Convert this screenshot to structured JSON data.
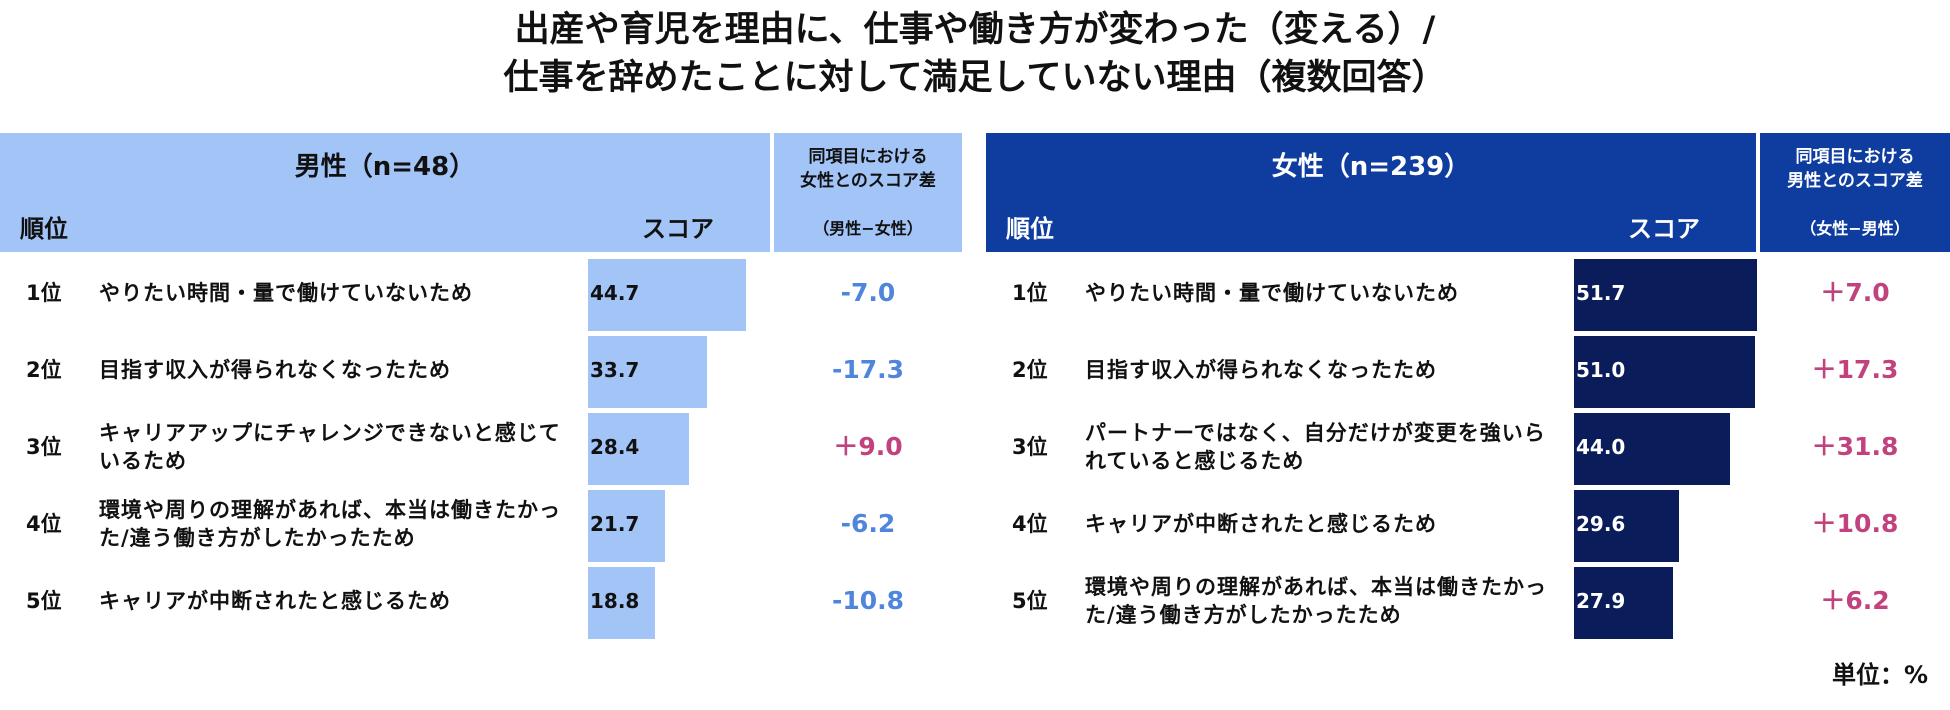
{
  "title": {
    "line1": "出産や育児を理由に、仕事や働き方が変わった（変える）/",
    "line2": "仕事を辞めたことに対して満足していない理由（複数回答）"
  },
  "unit": "単位：%",
  "colors": {
    "male_header": "#a2c4f7",
    "male_bar": "#a2c4f7",
    "female_header": "#0e3d9f",
    "female_bar": "#0b1c5a",
    "negative": "#4f86dc",
    "positive": "#c2427e"
  },
  "chart_data": [
    {
      "type": "bar",
      "title": "男性（n=48）",
      "rank_header": "順位",
      "score_header": "スコア",
      "diff_header_line1": "同項目における",
      "diff_header_line2": "女性とのスコア差",
      "diff_header_sub": "（男性−女性）",
      "ranks": [
        "1位",
        "2位",
        "3位",
        "4位",
        "5位"
      ],
      "categories": [
        "やりたい時間・量で働けていないため",
        "目指す収入が得られなくなったため",
        "キャリアアップにチャレンジできないと感じているため",
        "環境や周りの理解があれば、本当は働きたかった/違う働き方がしたかったため",
        "キャリアが中断されたと感じるため"
      ],
      "values": [
        44.7,
        33.7,
        28.4,
        21.7,
        18.8
      ],
      "value_labels": [
        "44.7",
        "33.7",
        "28.4",
        "21.7",
        "18.8"
      ],
      "diffs": [
        "-7.0",
        "-17.3",
        "＋9.0",
        "-6.2",
        "-10.8"
      ]
    },
    {
      "type": "bar",
      "title": "女性（n=239）",
      "rank_header": "順位",
      "score_header": "スコア",
      "diff_header_line1": "同項目における",
      "diff_header_line2": "男性とのスコア差",
      "diff_header_sub": "（女性−男性）",
      "ranks": [
        "1位",
        "2位",
        "3位",
        "4位",
        "5位"
      ],
      "categories": [
        "やりたい時間・量で働けていないため",
        "目指す収入が得られなくなったため",
        "パートナーではなく、自分だけが変更を強いられていると感じるため",
        "キャリアが中断されたと感じるため",
        "環境や周りの理解があれば、本当は働きたかった/違う働き方がしたかったため"
      ],
      "values": [
        51.7,
        51.0,
        44.0,
        29.6,
        27.9
      ],
      "value_labels": [
        "51.7",
        "51.0",
        "44.0",
        "29.6",
        "27.9"
      ],
      "diffs": [
        "＋7.0",
        "＋17.3",
        "＋31.8",
        "＋10.8",
        "＋6.2"
      ]
    }
  ]
}
